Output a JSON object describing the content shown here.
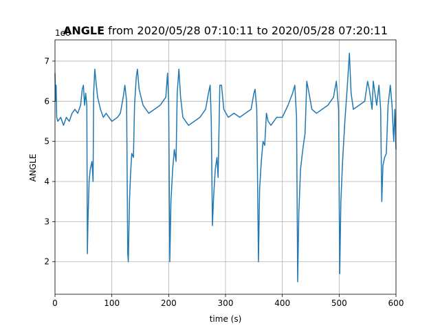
{
  "chart_data": {
    "type": "line",
    "title": "ANGLE",
    "subtitle": "from 2020/05/28 07:10:11 to 2020/05/28 07:20:11",
    "xlabel": "time (s)",
    "ylabel": "ANGLE",
    "y_offset_text": "1e6",
    "x": [
      0,
      1,
      2,
      3,
      5,
      10,
      15,
      20,
      25,
      30,
      35,
      40,
      45,
      48,
      50,
      52,
      54,
      56,
      57,
      58,
      60,
      62,
      65,
      67,
      68,
      70,
      72,
      75,
      80,
      85,
      90,
      100,
      110,
      115,
      120,
      123,
      126,
      128,
      129,
      131,
      133,
      135,
      138,
      140,
      143,
      145,
      148,
      155,
      165,
      175,
      185,
      195,
      198,
      200,
      202,
      204,
      207,
      210,
      213,
      215,
      218,
      221,
      225,
      235,
      245,
      255,
      265,
      270,
      273,
      275,
      277,
      279,
      282,
      285,
      287,
      290,
      293,
      297,
      305,
      315,
      325,
      335,
      345,
      350,
      352,
      355,
      358,
      360,
      363,
      366,
      369,
      372,
      375,
      380,
      390,
      400,
      410,
      418,
      422,
      425,
      427,
      429,
      432,
      436,
      440,
      443,
      447,
      452,
      460,
      470,
      480,
      490,
      495,
      499,
      501,
      503,
      506,
      508,
      510,
      514,
      518,
      521,
      525,
      535,
      545,
      550,
      553,
      558,
      560,
      566,
      570,
      573,
      575,
      577,
      580,
      583,
      586,
      590,
      593,
      596,
      598,
      600
    ],
    "series": [
      {
        "name": "ANGLE",
        "color": "#1f77b4",
        "values": [
          6.7,
          6.0,
          6.4,
          5.6,
          5.5,
          5.6,
          5.4,
          5.6,
          5.5,
          5.7,
          5.8,
          5.7,
          5.9,
          6.3,
          6.4,
          5.9,
          6.2,
          5.9,
          2.2,
          3.0,
          4.0,
          4.3,
          4.5,
          4.0,
          6.2,
          6.8,
          6.5,
          6.1,
          5.8,
          5.6,
          5.7,
          5.5,
          5.6,
          5.7,
          6.1,
          6.4,
          6.0,
          2.2,
          2.0,
          3.5,
          4.2,
          4.7,
          4.6,
          5.9,
          6.6,
          6.8,
          6.3,
          5.9,
          5.7,
          5.8,
          5.9,
          6.1,
          6.7,
          6.0,
          2.0,
          3.5,
          4.3,
          4.8,
          4.5,
          6.2,
          6.8,
          6.1,
          5.6,
          5.4,
          5.5,
          5.6,
          5.8,
          6.2,
          6.4,
          5.5,
          2.9,
          3.6,
          4.3,
          4.6,
          4.1,
          6.4,
          6.4,
          5.8,
          5.6,
          5.7,
          5.6,
          5.7,
          5.8,
          6.2,
          6.3,
          5.8,
          2.0,
          3.8,
          4.5,
          5.0,
          4.9,
          5.7,
          5.5,
          5.4,
          5.6,
          5.6,
          5.9,
          6.2,
          6.4,
          5.6,
          1.5,
          3.2,
          4.3,
          4.8,
          5.2,
          6.5,
          6.2,
          5.8,
          5.7,
          5.8,
          5.9,
          6.1,
          6.5,
          5.8,
          1.7,
          3.5,
          4.5,
          5.0,
          5.5,
          6.3,
          7.2,
          6.2,
          5.8,
          5.9,
          6.0,
          6.5,
          6.3,
          5.8,
          6.5,
          5.9,
          6.4,
          5.8,
          3.5,
          4.4,
          4.6,
          4.7,
          5.9,
          6.4,
          5.9,
          5.0,
          5.8,
          4.8
        ]
      }
    ],
    "xlim": [
      0,
      600
    ],
    "xticks": [
      0,
      100,
      200,
      300,
      400,
      500,
      600
    ],
    "ylim": [
      1.19,
      7.53
    ],
    "yticks": [
      2,
      3,
      4,
      5,
      6,
      7
    ],
    "grid": true
  }
}
